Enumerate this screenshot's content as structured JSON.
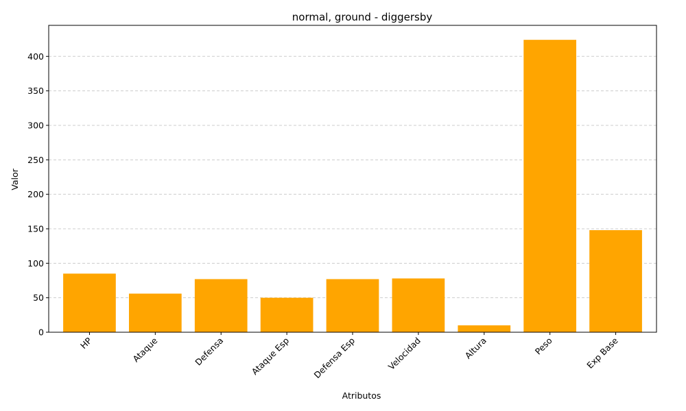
{
  "chart_data": {
    "type": "bar",
    "title": "normal, ground - diggersby",
    "xlabel": "Atributos",
    "ylabel": "Valor",
    "categories": [
      "HP",
      "Ataque",
      "Defensa",
      "Ataque Esp",
      "Defensa Esp",
      "Velocidad",
      "Altura",
      "Peso",
      "Exp Base"
    ],
    "values": [
      85,
      56,
      77,
      50,
      77,
      78,
      10,
      424,
      148
    ],
    "ylim": [
      0,
      445
    ],
    "yticks": [
      0,
      50,
      100,
      150,
      200,
      250,
      300,
      350,
      400
    ],
    "grid": "y-dashed",
    "bar_color": "#FFA500",
    "grid_color": "#cccccc"
  }
}
